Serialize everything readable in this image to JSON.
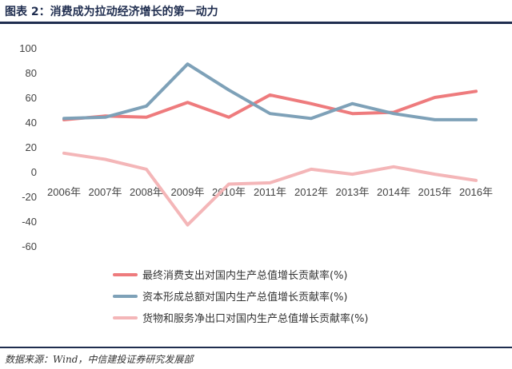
{
  "header": {
    "title": "图表 2：消费成为拉动经济增长的第一动力"
  },
  "footer": {
    "source": "数据来源：Wind，中信建投证券研究发展部"
  },
  "chart_data": {
    "type": "line",
    "categories": [
      "2006年",
      "2007年",
      "2008年",
      "2009年",
      "2010年",
      "2011年",
      "2012年",
      "2013年",
      "2014年",
      "2015年",
      "2016年"
    ],
    "y_ticks": [
      "100",
      "80",
      "60",
      "40",
      "20",
      "0",
      "-20",
      "-40",
      "-60"
    ],
    "ylim": [
      -60,
      100
    ],
    "grid": false,
    "legend_position": "bottom",
    "series": [
      {
        "name": "最终消费支出对国内生产总值增长贡献率(%)",
        "color": "#ee7b7d",
        "values": [
          42,
          45,
          44,
          56,
          44,
          62,
          55,
          47,
          48,
          60,
          65
        ]
      },
      {
        "name": "资本形成总额对国内生产总值增长贡献率(%)",
        "color": "#7ea1b8",
        "values": [
          43,
          44,
          53,
          87,
          66,
          47,
          43,
          55,
          47,
          42,
          42
        ]
      },
      {
        "name": "货物和服务净出口对国内生产总值增长贡献率(%)",
        "color": "#f4b6b8",
        "values": [
          15,
          10,
          2,
          -43,
          -10,
          -9,
          2,
          -2,
          4,
          -2,
          -7
        ]
      }
    ]
  }
}
